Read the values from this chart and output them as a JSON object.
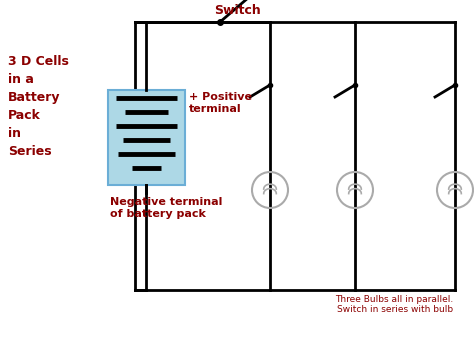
{
  "bg_color": "#ffffff",
  "wire_color": "#000000",
  "text_color": "#8b0000",
  "battery_box_color": "#add8e6",
  "battery_box_edge": "#6baed6",
  "label_3d": "3 D Cells\nin a\nBattery\nPack\nin\nSeries",
  "label_positive": "+ Positive\nterminal",
  "label_negative": "Negative terminal\nof battery pack",
  "label_switch": "Switch",
  "label_bottom": "Three Bulbs all in parallel.\nSwitch in series with bulb",
  "figsize": [
    4.74,
    3.42
  ],
  "dpi": 100
}
